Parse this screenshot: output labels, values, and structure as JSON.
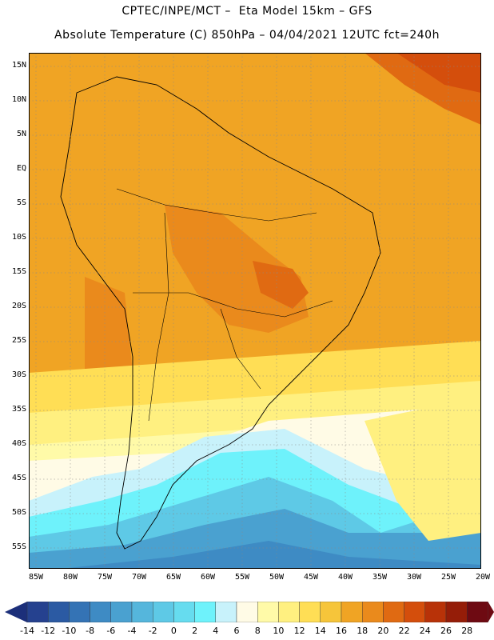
{
  "header": {
    "line1": "CPTEC/INPE/MCT –  Eta Model 15km – GFS",
    "line2": "Absolute Temperature (C) 850hPa – 04/04/2021 12UTC fct=240h"
  },
  "map": {
    "lat_labels": [
      "15N",
      "10N",
      "5N",
      "EQ",
      "5S",
      "10S",
      "15S",
      "20S",
      "25S",
      "30S",
      "35S",
      "40S",
      "45S",
      "50S",
      "55S"
    ],
    "lon_labels": [
      "85W",
      "80W",
      "75W",
      "70W",
      "65W",
      "60W",
      "55W",
      "50W",
      "45W",
      "40W",
      "35W",
      "30W",
      "25W",
      "20W"
    ],
    "grid": "dotted"
  },
  "colorbar": {
    "labels": [
      "-14",
      "-12",
      "-10",
      "-8",
      "-6",
      "-4",
      "-2",
      "0",
      "2",
      "4",
      "6",
      "8",
      "10",
      "12",
      "14",
      "16",
      "18",
      "20",
      "22",
      "24",
      "26",
      "28"
    ],
    "under_color": "#1c2f7a",
    "over_color": "#6e0a12",
    "colors": [
      "#25418f",
      "#2b5aa3",
      "#3473b5",
      "#3e8bc4",
      "#4aa1d0",
      "#55b6dc",
      "#5ec9e6",
      "#66dcef",
      "#6ef2fb",
      "#c8f2fb",
      "#fffbe6",
      "#fffaa8",
      "#fff080",
      "#ffde55",
      "#f6c53a",
      "#f0a424",
      "#ea8a1c",
      "#e06a12",
      "#d44e0c",
      "#b83208",
      "#951d08",
      "#6e0a12"
    ]
  }
}
